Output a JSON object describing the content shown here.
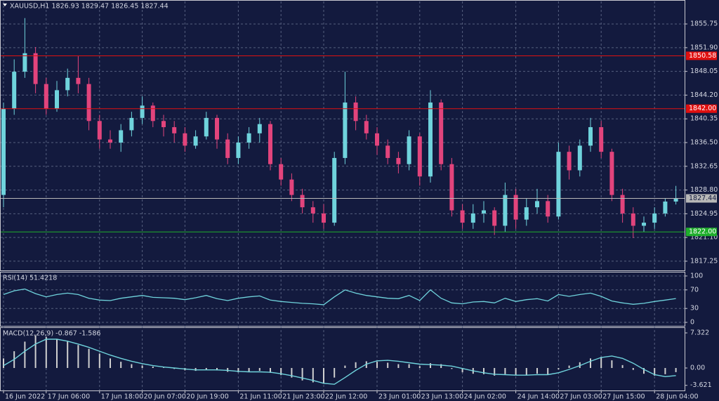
{
  "chart_data": [
    {
      "type": "candlestick",
      "title": "XAUUSD,H1  1826.93 1829.47 1826.45 1827.44",
      "categories": [
        "16 Jun 2022",
        null,
        null,
        null,
        "17 Jun 06:00",
        null,
        null,
        null,
        null,
        "17 Jun 18:00",
        null,
        null,
        null,
        "20 Jun 07:00",
        null,
        null,
        null,
        "20 Jun 19:00",
        null,
        null,
        null,
        null,
        "21 Jun 11:00",
        null,
        null,
        null,
        "21 Jun 23:00",
        null,
        null,
        null,
        "22 Jun 12:00",
        null,
        null,
        null,
        null,
        "23 Jun 01:00",
        null,
        null,
        null,
        "23 Jun 13:00",
        null,
        null,
        null,
        "24 Jun 02:00",
        null,
        null,
        null,
        null,
        "24 Jun 14:00",
        null,
        null,
        null,
        "27 Jun 03:00",
        null,
        null,
        null,
        "27 Jun 15:00",
        null,
        null,
        null,
        null,
        "28 Jun 04:00",
        null,
        null
      ],
      "open": [
        1828,
        1842,
        1848,
        1851,
        1846,
        1842,
        1845,
        1847,
        1846,
        1840,
        1837,
        1836.5,
        1838.5,
        1840.5,
        1842.5,
        1840,
        1839,
        1838,
        1836,
        1837.5,
        1840.5,
        1837,
        1834,
        1836.5,
        1838,
        1839.5,
        1833,
        1830.5,
        1828,
        1826,
        1825,
        1823.5,
        1834,
        1843,
        1840,
        1838,
        1836,
        1834,
        1833,
        1837.5,
        1831,
        1843,
        1833,
        1825.5,
        1823.5,
        1825,
        1825.5,
        1823,
        1828,
        1824,
        1826,
        1827,
        1824.5,
        1835,
        1832,
        1836,
        1839,
        1835,
        1828,
        1825,
        1823,
        1823.5,
        1825,
        1826.93
      ],
      "high": [
        1843,
        1850,
        1856.7,
        1852,
        1847,
        1846.5,
        1848.5,
        1850.5,
        1847,
        1841,
        1838.5,
        1839.5,
        1841.5,
        1844,
        1843,
        1841,
        1840,
        1839,
        1838.5,
        1841.5,
        1841,
        1838,
        1837.5,
        1839,
        1840.5,
        1840,
        1834,
        1831.5,
        1829,
        1827,
        1826.5,
        1835,
        1848,
        1844,
        1841,
        1839,
        1837,
        1835,
        1838.5,
        1838,
        1845,
        1843.5,
        1834,
        1826.5,
        1826.5,
        1827,
        1826,
        1830,
        1829,
        1827.5,
        1829,
        1828,
        1836.5,
        1836,
        1837,
        1840.5,
        1840,
        1835.5,
        1829,
        1826,
        1824.5,
        1826,
        1827.5,
        1829.47
      ],
      "low": [
        1826,
        1841,
        1847,
        1844.5,
        1841,
        1841.5,
        1844,
        1844.5,
        1838.5,
        1835.5,
        1835.5,
        1835,
        1837.5,
        1839.5,
        1839,
        1837.5,
        1836.5,
        1835,
        1835.5,
        1837,
        1835.5,
        1833,
        1833,
        1835.5,
        1836.5,
        1832,
        1829.5,
        1827,
        1825,
        1823.5,
        1822.5,
        1823,
        1833,
        1838.5,
        1837,
        1834.5,
        1833,
        1831.5,
        1832,
        1829.5,
        1830,
        1832,
        1824.5,
        1822.5,
        1822.5,
        1823.5,
        1821.5,
        1822,
        1822.5,
        1823,
        1825,
        1823.5,
        1824,
        1830.5,
        1831,
        1835,
        1834,
        1827,
        1823.5,
        1821,
        1822,
        1822.5,
        1824.5,
        1826.45
      ],
      "close": [
        1842,
        1848,
        1851,
        1846,
        1842,
        1845,
        1847,
        1846,
        1840,
        1837,
        1836.5,
        1838.5,
        1840.5,
        1842.5,
        1840,
        1839,
        1838,
        1836,
        1837.5,
        1840.5,
        1837,
        1834,
        1836.5,
        1838,
        1839.5,
        1833,
        1830.5,
        1828,
        1826,
        1825,
        1823.5,
        1834,
        1843,
        1840,
        1838,
        1836,
        1834,
        1833,
        1837.5,
        1831,
        1843,
        1833,
        1825.5,
        1823.5,
        1825,
        1825.5,
        1823,
        1828,
        1824,
        1826,
        1827,
        1824.5,
        1835,
        1832,
        1836,
        1839,
        1835,
        1828,
        1825,
        1823,
        1823.5,
        1825,
        1826.93,
        1827.44
      ],
      "up_color": "#6fd3dc",
      "down_color": "#e2447c",
      "levels": [
        {
          "value": 1850.58,
          "color": "#e01010"
        },
        {
          "value": 1842,
          "label": "1842.00",
          "color": "#e01010"
        },
        {
          "value": 1827.44,
          "color": "#b8b8b8"
        },
        {
          "value": 1822,
          "label": "1822.00",
          "color": "#1fae2c"
        }
      ],
      "ylim": [
        1815.76,
        1859.52
      ],
      "yticks": [
        1855.75,
        {
          "value": 1851.9,
          "label": "1851.90"
        },
        1848.05,
        {
          "value": 1844.2,
          "label": "1844.20"
        },
        1840.35,
        {
          "value": 1836.5,
          "label": "1836.50"
        },
        1832.65,
        {
          "value": 1828.8,
          "label": "1828.80"
        },
        1824.95,
        {
          "value": 1821.1,
          "label": "1821.10"
        },
        1817.25
      ],
      "grid": true
    },
    {
      "type": "line",
      "title": "RSI(14) 51.4218",
      "color": "#6fd3dc",
      "values": [
        60,
        68,
        72,
        62,
        55,
        60,
        63,
        60,
        52,
        48,
        47,
        52,
        55,
        58,
        54,
        53,
        52,
        49,
        53,
        58,
        51,
        47,
        52,
        55,
        57,
        48,
        45,
        43,
        41,
        40,
        38,
        55,
        70,
        63,
        58,
        55,
        52,
        51,
        58,
        47,
        70,
        52,
        42,
        40,
        44,
        45,
        42,
        52,
        45,
        49,
        51,
        46,
        60,
        56,
        60,
        63,
        56,
        46,
        42,
        39,
        41,
        45,
        48,
        51.4218
      ],
      "ylim": [
        -7.5,
        107.5
      ],
      "yticks": [
        0,
        30,
        70,
        100
      ],
      "grid": true
    },
    {
      "type": "macd",
      "title": "MACD(12,26,9) -0.867 -1.586",
      "bar_color": "#d0d0d0",
      "line_color": "#6fd3dc",
      "histogram": [
        2.0,
        3.5,
        5.5,
        6.8,
        6.5,
        6.0,
        5.5,
        4.8,
        4.0,
        3.0,
        2.0,
        1.3,
        0.8,
        0.5,
        0.3,
        0.1,
        -0.2,
        -0.5,
        -0.6,
        -0.4,
        -0.5,
        -0.8,
        -0.9,
        -0.8,
        -0.6,
        -1.0,
        -1.5,
        -2.0,
        -2.6,
        -3.0,
        -3.3,
        -2.0,
        0.5,
        1.2,
        1.4,
        1.3,
        1.1,
        0.8,
        0.8,
        0.4,
        1.0,
        0.8,
        -0.2,
        -0.9,
        -1.2,
        -1.3,
        -1.6,
        -1.3,
        -1.5,
        -1.4,
        -1.2,
        -1.4,
        -0.3,
        0.5,
        1.2,
        2.0,
        2.3,
        1.6,
        0.6,
        -0.4,
        -1.2,
        -1.6,
        -1.3,
        -0.867
      ],
      "signal": [
        0.5,
        1.8,
        3.5,
        5.0,
        6.0,
        6.0,
        5.6,
        5.0,
        4.3,
        3.5,
        2.7,
        2.0,
        1.4,
        0.9,
        0.5,
        0.2,
        0.0,
        -0.2,
        -0.4,
        -0.4,
        -0.4,
        -0.5,
        -0.7,
        -0.8,
        -0.8,
        -0.9,
        -1.2,
        -1.6,
        -2.1,
        -2.6,
        -3.2,
        -3.4,
        -2.0,
        -0.5,
        0.8,
        1.5,
        1.6,
        1.4,
        1.1,
        0.8,
        0.7,
        0.6,
        0.4,
        -0.1,
        -0.6,
        -1.0,
        -1.3,
        -1.4,
        -1.5,
        -1.5,
        -1.4,
        -1.4,
        -1.0,
        -0.3,
        0.5,
        1.4,
        2.2,
        2.5,
        2.0,
        1.0,
        -0.3,
        -1.4,
        -1.8,
        -1.586
      ],
      "ylim": [
        -4.69,
        8.35
      ],
      "yticks": [
        -3.621,
        {
          "value": 0,
          "label": "0.00"
        },
        7.322
      ],
      "grid": false
    }
  ]
}
